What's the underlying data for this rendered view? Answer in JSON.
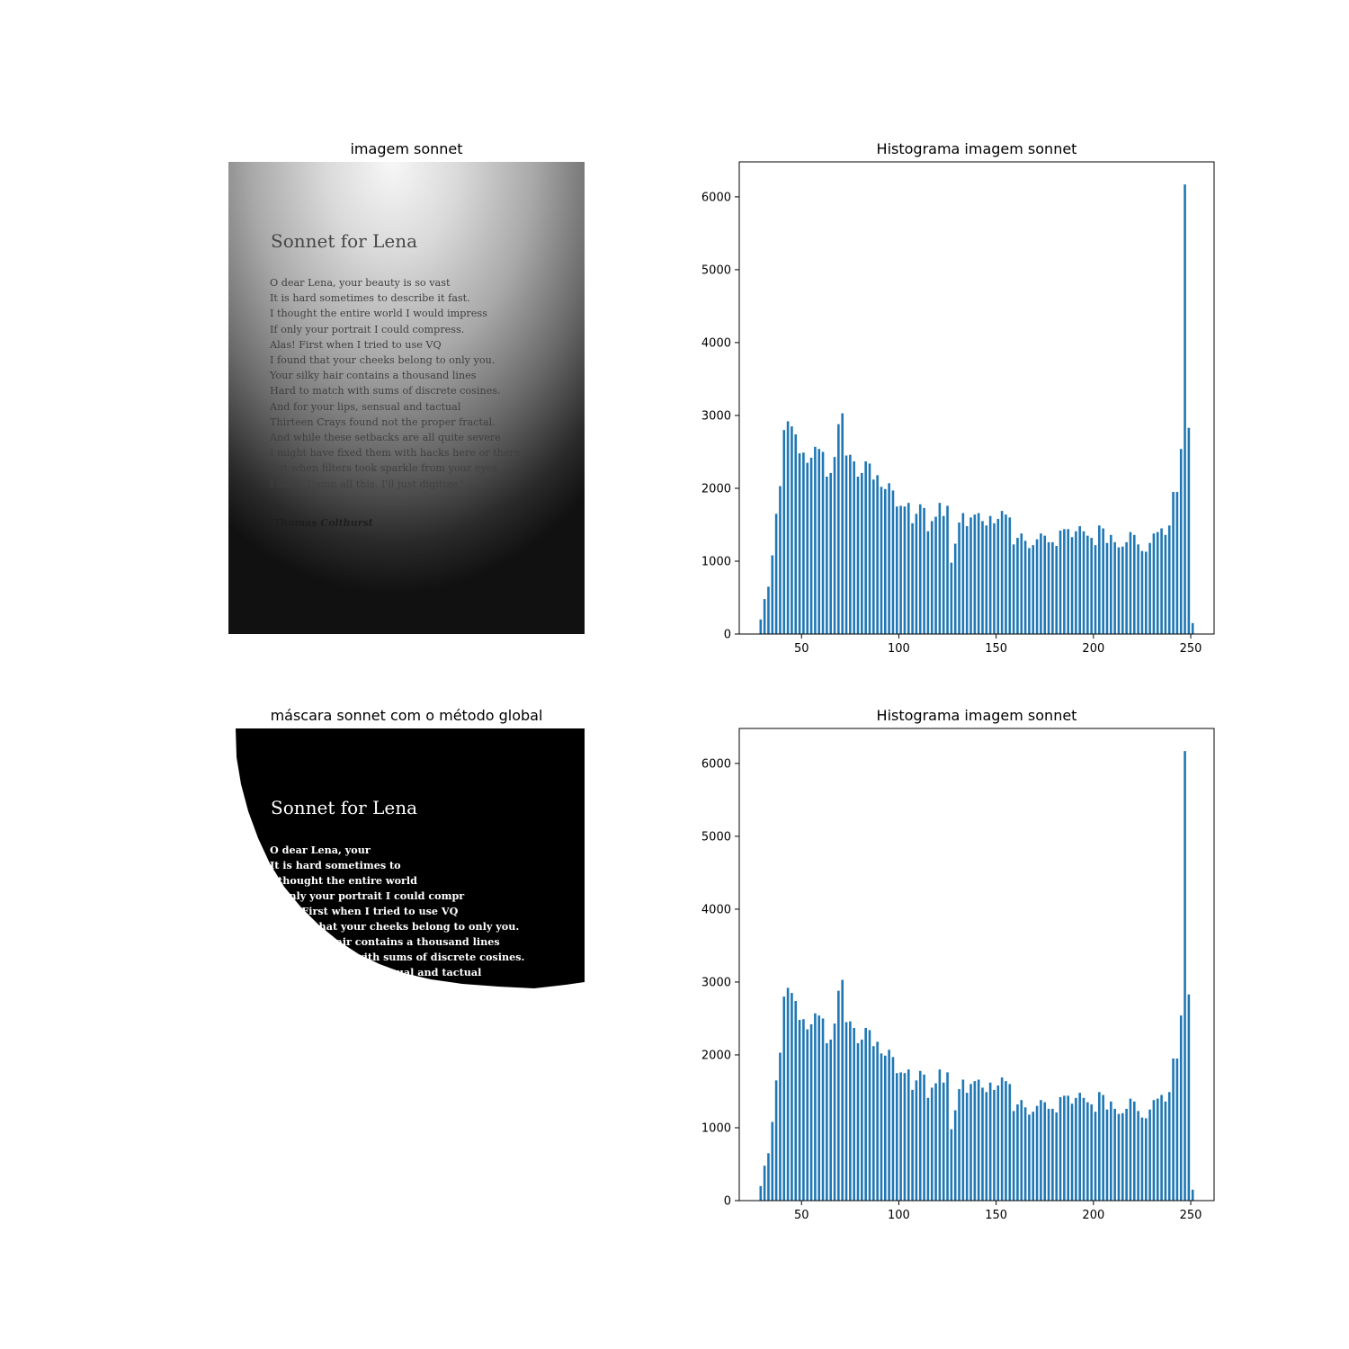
{
  "panels": {
    "photo_title": "imagem sonnet",
    "mask_title": "máscara sonnet com o método global"
  },
  "photo": {
    "title": "Sonnet for Lena",
    "lines": [
      "O dear Lena, your beauty is so vast",
      "It is hard sometimes to describe it fast.",
      "I thought the entire world I would impress",
      "If only your portrait I could compress.",
      "Alas! First when I tried to use VQ",
      "I found that your cheeks belong to only you.",
      "Your silky hair contains a thousand lines",
      "Hard to match with sums of discrete cosines.",
      "And for your lips, sensual and tactual",
      "Thirteen Crays found not the proper fractal.",
      "And while these setbacks are all quite severe",
      "I might have fixed them with hacks here or there",
      "But when filters took sparkle from your eyes",
      "I said, 'Damn all this. I'll just digitize.'"
    ],
    "author": "Thomas Colthurst"
  },
  "mask": {
    "title": "Sonnet for Lena",
    "lines": [
      "O dear Lena, your",
      "It is hard sometimes to",
      "I thought the entire world",
      "If only your portrait I could compr",
      "Alas! First when I tried to use VQ",
      "I found that your cheeks belong to only you.",
      "Your silky hair contains a thousand lines",
      "Hard to match with sums of discrete cosines.",
      "And for your lips, sensual and tactual"
    ]
  },
  "chart_data": [
    {
      "type": "bar",
      "title": "Histograma imagem sonnet",
      "xlabel": "",
      "ylabel": "",
      "xlim": [
        18,
        262
      ],
      "ylim": [
        0,
        6480
      ],
      "xticks": [
        50,
        100,
        150,
        200,
        250
      ],
      "yticks": [
        0,
        1000,
        2000,
        3000,
        4000,
        5000,
        6000
      ],
      "color": "#1f77b4",
      "x": [
        29,
        31,
        33,
        35,
        37,
        39,
        41,
        43,
        45,
        47,
        49,
        51,
        53,
        55,
        57,
        59,
        61,
        63,
        65,
        67,
        69,
        71,
        73,
        75,
        77,
        79,
        81,
        83,
        85,
        87,
        89,
        91,
        93,
        95,
        97,
        99,
        101,
        103,
        105,
        107,
        109,
        111,
        113,
        115,
        117,
        119,
        121,
        123,
        125,
        127,
        129,
        131,
        133,
        135,
        137,
        139,
        141,
        143,
        145,
        147,
        149,
        151,
        153,
        155,
        157,
        159,
        161,
        163,
        165,
        167,
        169,
        171,
        173,
        175,
        177,
        179,
        181,
        183,
        185,
        187,
        189,
        191,
        193,
        195,
        197,
        199,
        201,
        203,
        205,
        207,
        209,
        211,
        213,
        215,
        217,
        219,
        221,
        223,
        225,
        227,
        229,
        231,
        233,
        235,
        237,
        239,
        241,
        243,
        245,
        247,
        249,
        251
      ],
      "values": [
        200,
        480,
        650,
        1080,
        1650,
        2030,
        2800,
        2920,
        2850,
        2740,
        2480,
        2490,
        2350,
        2420,
        2570,
        2540,
        2500,
        2160,
        2210,
        2430,
        2880,
        3030,
        2450,
        2460,
        2370,
        2160,
        2210,
        2370,
        2340,
        2120,
        2180,
        2020,
        1990,
        2070,
        1970,
        1750,
        1760,
        1750,
        1800,
        1520,
        1650,
        1780,
        1730,
        1410,
        1550,
        1610,
        1800,
        1620,
        1760,
        980,
        1240,
        1530,
        1660,
        1480,
        1600,
        1640,
        1660,
        1550,
        1490,
        1620,
        1520,
        1580,
        1690,
        1640,
        1600,
        1230,
        1320,
        1380,
        1280,
        1180,
        1220,
        1300,
        1380,
        1350,
        1260,
        1260,
        1210,
        1420,
        1440,
        1440,
        1330,
        1410,
        1480,
        1410,
        1350,
        1320,
        1220,
        1490,
        1450,
        1250,
        1360,
        1260,
        1190,
        1200,
        1260,
        1400,
        1360,
        1230,
        1140,
        1130,
        1250,
        1380,
        1400,
        1450,
        1360,
        1490,
        1950,
        1950,
        2540,
        6170,
        2830,
        150
      ]
    },
    {
      "type": "bar",
      "title": "Histograma imagem sonnet",
      "xlabel": "",
      "ylabel": "",
      "xlim": [
        18,
        262
      ],
      "ylim": [
        0,
        6480
      ],
      "xticks": [
        50,
        100,
        150,
        200,
        250
      ],
      "yticks": [
        0,
        1000,
        2000,
        3000,
        4000,
        5000,
        6000
      ],
      "color": "#1f77b4",
      "x": [
        29,
        31,
        33,
        35,
        37,
        39,
        41,
        43,
        45,
        47,
        49,
        51,
        53,
        55,
        57,
        59,
        61,
        63,
        65,
        67,
        69,
        71,
        73,
        75,
        77,
        79,
        81,
        83,
        85,
        87,
        89,
        91,
        93,
        95,
        97,
        99,
        101,
        103,
        105,
        107,
        109,
        111,
        113,
        115,
        117,
        119,
        121,
        123,
        125,
        127,
        129,
        131,
        133,
        135,
        137,
        139,
        141,
        143,
        145,
        147,
        149,
        151,
        153,
        155,
        157,
        159,
        161,
        163,
        165,
        167,
        169,
        171,
        173,
        175,
        177,
        179,
        181,
        183,
        185,
        187,
        189,
        191,
        193,
        195,
        197,
        199,
        201,
        203,
        205,
        207,
        209,
        211,
        213,
        215,
        217,
        219,
        221,
        223,
        225,
        227,
        229,
        231,
        233,
        235,
        237,
        239,
        241,
        243,
        245,
        247,
        249,
        251
      ],
      "values": [
        200,
        480,
        650,
        1080,
        1650,
        2030,
        2800,
        2920,
        2850,
        2740,
        2480,
        2490,
        2350,
        2420,
        2570,
        2540,
        2500,
        2160,
        2210,
        2430,
        2880,
        3030,
        2450,
        2460,
        2370,
        2160,
        2210,
        2370,
        2340,
        2120,
        2180,
        2020,
        1990,
        2070,
        1970,
        1750,
        1760,
        1750,
        1800,
        1520,
        1650,
        1780,
        1730,
        1410,
        1550,
        1610,
        1800,
        1620,
        1760,
        980,
        1240,
        1530,
        1660,
        1480,
        1600,
        1640,
        1660,
        1550,
        1490,
        1620,
        1520,
        1580,
        1690,
        1640,
        1600,
        1230,
        1320,
        1380,
        1280,
        1180,
        1220,
        1300,
        1380,
        1350,
        1260,
        1260,
        1210,
        1420,
        1440,
        1440,
        1330,
        1410,
        1480,
        1410,
        1350,
        1320,
        1220,
        1490,
        1450,
        1250,
        1360,
        1260,
        1190,
        1200,
        1260,
        1400,
        1360,
        1230,
        1140,
        1130,
        1250,
        1380,
        1400,
        1450,
        1360,
        1490,
        1950,
        1950,
        2540,
        6170,
        2830,
        150
      ]
    }
  ]
}
